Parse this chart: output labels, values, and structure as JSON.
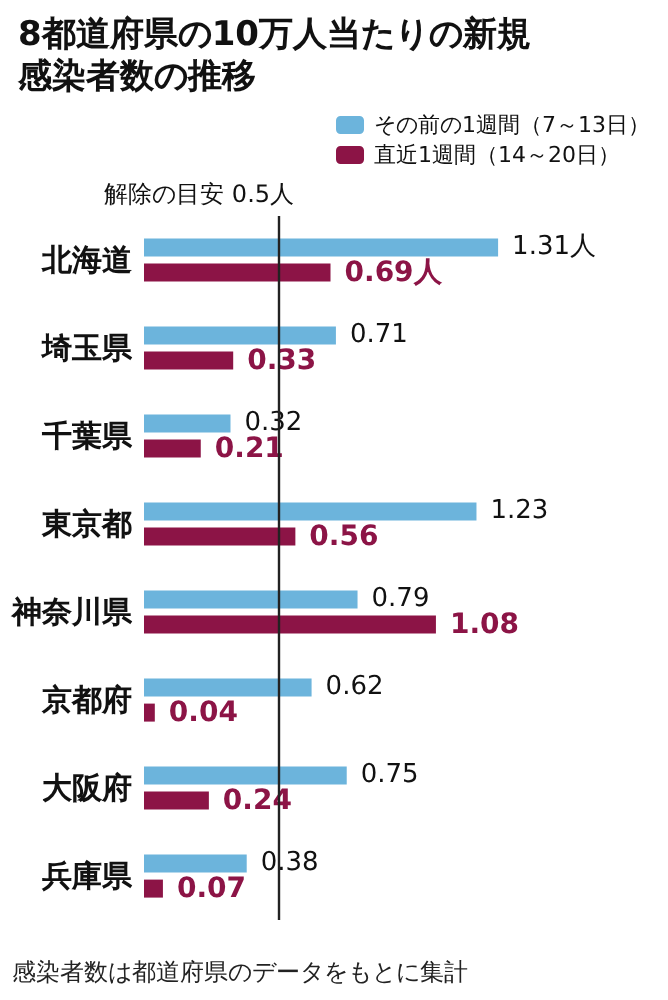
{
  "chart_data": {
    "type": "bar",
    "orientation": "horizontal",
    "title": "8都道府県の10万人当たりの新規感染者数の推移",
    "categories": [
      "北海道",
      "埼玉県",
      "千葉県",
      "東京都",
      "神奈川県",
      "京都府",
      "大阪府",
      "兵庫県"
    ],
    "series": [
      {
        "name": "その前の1週間（7～13日）",
        "color": "#6cb4dc",
        "values": [
          1.31,
          0.71,
          0.32,
          1.23,
          0.79,
          0.62,
          0.75,
          0.38
        ],
        "value_labels": [
          "1.31人",
          "0.71",
          "0.32",
          "1.23",
          "0.79",
          "0.62",
          "0.75",
          "0.38"
        ]
      },
      {
        "name": "直近1週間（14～20日）",
        "color": "#8c1446",
        "values": [
          0.69,
          0.33,
          0.21,
          0.56,
          1.08,
          0.04,
          0.24,
          0.07
        ],
        "value_labels": [
          "0.69人",
          "0.33",
          "0.21",
          "0.56",
          "1.08",
          "0.04",
          "0.24",
          "0.07"
        ]
      }
    ],
    "ref_lines": [
      {
        "axis": "x",
        "value": 0.5,
        "label": "解除の目安 0.5人",
        "color": "#222222"
      }
    ],
    "legend": "top right",
    "annotations": [
      "感染者数は都道府県のデータをもとに集計"
    ]
  }
}
